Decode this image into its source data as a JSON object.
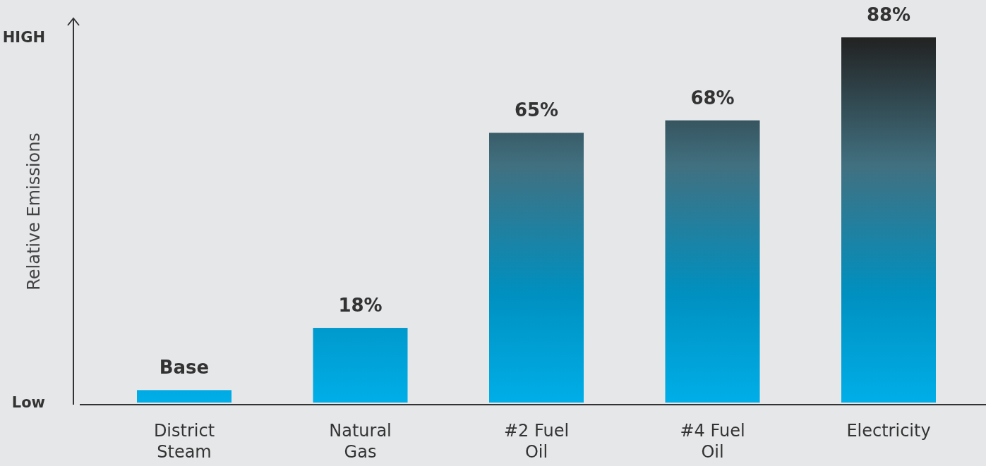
{
  "chart_data": {
    "type": "bar",
    "ylabel": "Relative Emissions",
    "categories": [
      "District Steam",
      "Natural Gas",
      "#2 Fuel Oil",
      "#4 Fuel Oil",
      "Electricity"
    ],
    "values": [
      3,
      18,
      65,
      68,
      88
    ],
    "value_labels": [
      "Base",
      "18%",
      "65%",
      "68%",
      "88%"
    ],
    "color": "#00aee8",
    "annotations": [
      "HIGH",
      "Low"
    ]
  }
}
